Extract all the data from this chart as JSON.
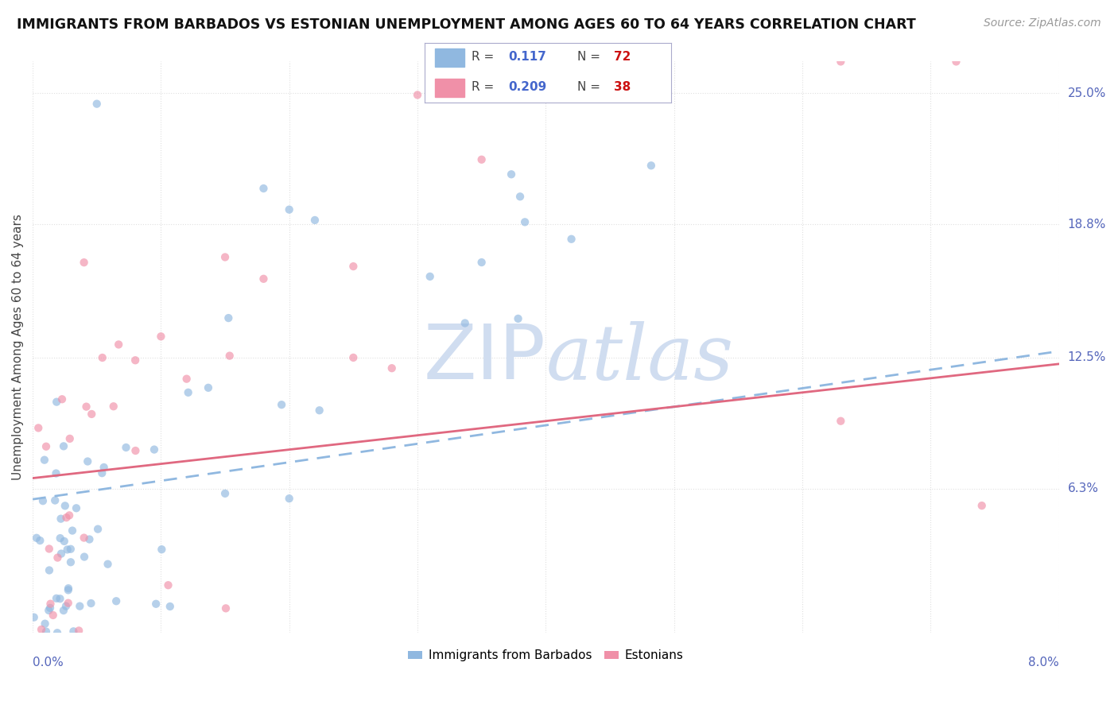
{
  "title": "IMMIGRANTS FROM BARBADOS VS ESTONIAN UNEMPLOYMENT AMONG AGES 60 TO 64 YEARS CORRELATION CHART",
  "source": "Source: ZipAtlas.com",
  "ylabel": "Unemployment Among Ages 60 to 64 years",
  "ylabel_ticks": [
    "6.3%",
    "12.5%",
    "18.8%",
    "25.0%"
  ],
  "ytick_values": [
    0.063,
    0.125,
    0.188,
    0.25
  ],
  "xlim": [
    0.0,
    0.08
  ],
  "ylim": [
    -0.005,
    0.265
  ],
  "series1": {
    "label": "Immigrants from Barbados",
    "R": 0.117,
    "N": 72,
    "dot_color": "#90b8e0",
    "line_color": "#90b8e0",
    "line_style": "--"
  },
  "series2": {
    "label": "Estonians",
    "R": 0.209,
    "N": 38,
    "dot_color": "#f090a8",
    "line_color": "#e06880",
    "line_style": "-"
  },
  "watermark_color": "#d0ddf0",
  "background_color": "#ffffff",
  "grid_color": "#e0e0e0",
  "title_color": "#111111",
  "axis_label_color": "#5566bb",
  "legend_border_color": "#aaaacc"
}
